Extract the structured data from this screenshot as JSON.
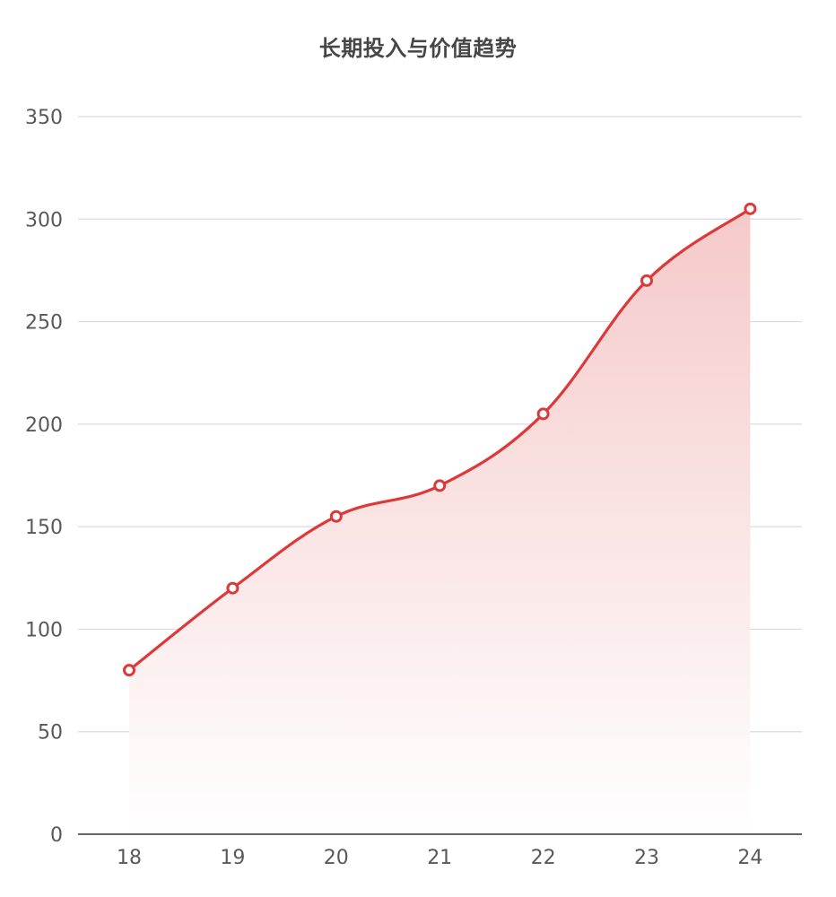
{
  "chart_data": {
    "type": "area",
    "title": "长期投入与价值趋势",
    "xlabel": "",
    "ylabel": "",
    "categories": [
      "18",
      "19",
      "20",
      "21",
      "22",
      "23",
      "24"
    ],
    "series": [
      {
        "values": [
          80,
          120,
          155,
          170,
          205,
          270,
          305
        ]
      }
    ],
    "ylim": [
      0,
      350
    ],
    "yticks": [
      0,
      50,
      100,
      150,
      200,
      250,
      300,
      350
    ],
    "grid": true,
    "smooth": true,
    "colors": {
      "line": "#dc3a3a",
      "fill_top": "#f5c9c9",
      "fill_bottom": "#ffffff",
      "marker_fill": "#ffffff",
      "grid": "#d9d9e3",
      "axis": "#333333"
    }
  }
}
